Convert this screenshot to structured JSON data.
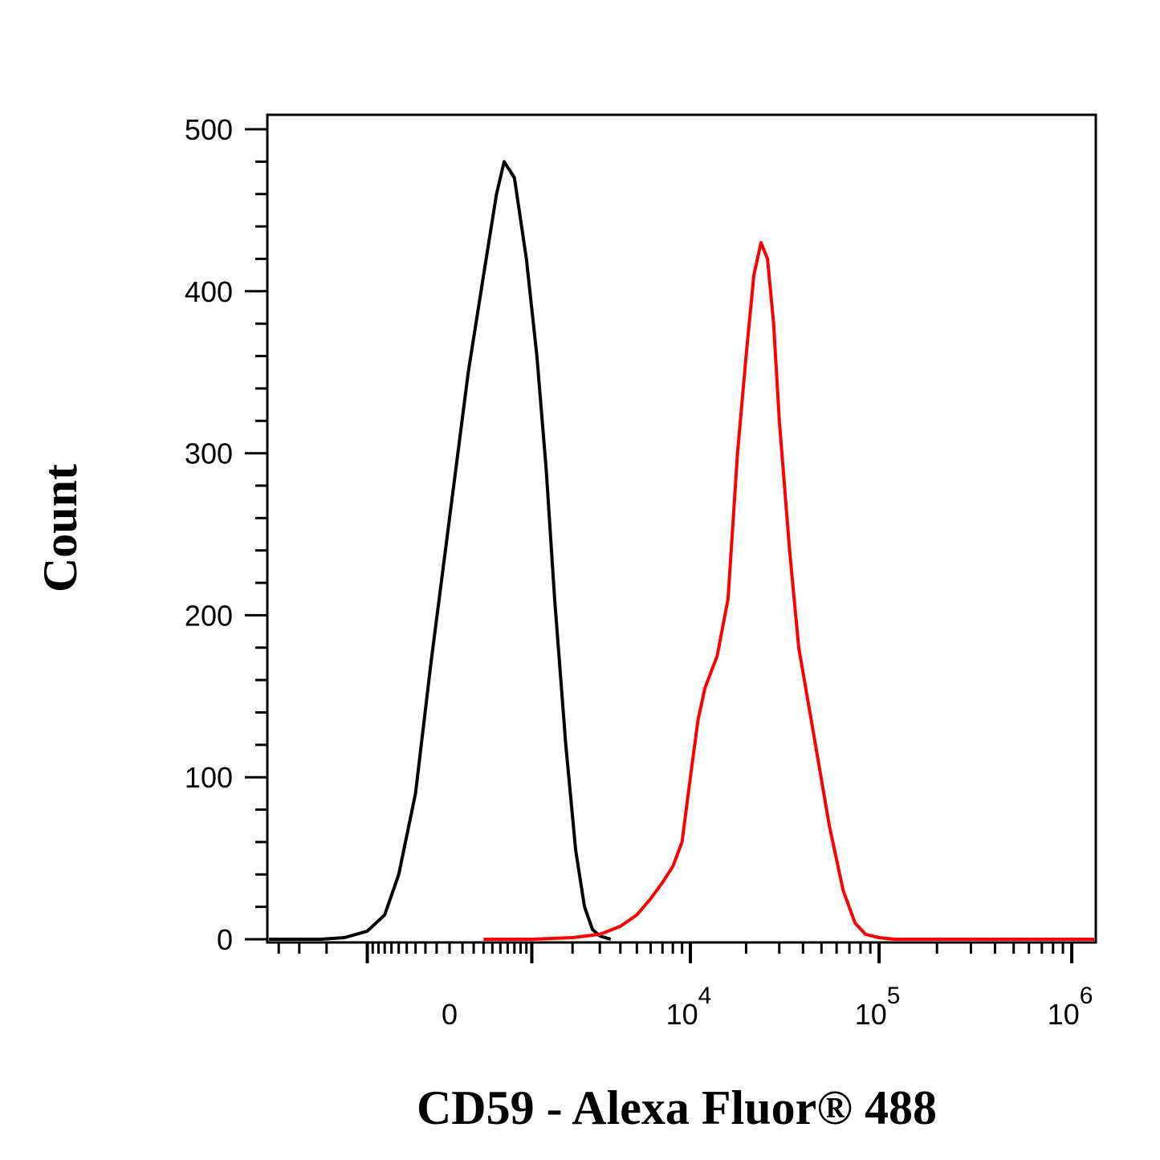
{
  "chart_data": {
    "type": "line",
    "title": "",
    "xlabel": "CD59 - Alexa Fluor® 488",
    "ylabel": "Count",
    "x_scale": "biexponential",
    "ylim": [
      0,
      500
    ],
    "y_ticks": [
      {
        "value": 0,
        "label": "0"
      },
      {
        "value": 100,
        "label": "100"
      },
      {
        "value": 200,
        "label": "200"
      },
      {
        "value": 300,
        "label": "300"
      },
      {
        "value": 400,
        "label": "400"
      },
      {
        "value": 500,
        "label": "500"
      }
    ],
    "x_ticks": [
      {
        "value": 0,
        "base": "0",
        "exp": ""
      },
      {
        "value": 10000,
        "base": "10",
        "exp": "4"
      },
      {
        "value": 100000,
        "base": "10",
        "exp": "5"
      },
      {
        "value": 1000000,
        "base": "10",
        "exp": "6"
      }
    ],
    "grid": false,
    "legend": "none",
    "series": [
      {
        "color": "#000000",
        "points": [
          [
            -2200,
            0
          ],
          [
            -1500,
            1
          ],
          [
            -1000,
            5
          ],
          [
            -700,
            15
          ],
          [
            -500,
            40
          ],
          [
            -300,
            90
          ],
          [
            -150,
            170
          ],
          [
            0,
            260
          ],
          [
            150,
            350
          ],
          [
            300,
            410
          ],
          [
            450,
            460
          ],
          [
            550,
            480
          ],
          [
            700,
            470
          ],
          [
            900,
            420
          ],
          [
            1100,
            360
          ],
          [
            1300,
            290
          ],
          [
            1500,
            210
          ],
          [
            1800,
            120
          ],
          [
            2100,
            55
          ],
          [
            2400,
            20
          ],
          [
            2700,
            6
          ],
          [
            3000,
            2
          ],
          [
            3500,
            0
          ]
        ]
      },
      {
        "color": "#ff0000",
        "points": [
          [
            300,
            0
          ],
          [
            1000,
            0
          ],
          [
            2000,
            1
          ],
          [
            3000,
            3
          ],
          [
            4000,
            8
          ],
          [
            5000,
            15
          ],
          [
            6000,
            25
          ],
          [
            7000,
            35
          ],
          [
            8000,
            45
          ],
          [
            9000,
            60
          ],
          [
            10000,
            100
          ],
          [
            11000,
            135
          ],
          [
            12000,
            155
          ],
          [
            14000,
            175
          ],
          [
            16000,
            210
          ],
          [
            18000,
            300
          ],
          [
            20000,
            360
          ],
          [
            22000,
            410
          ],
          [
            24000,
            430
          ],
          [
            26000,
            420
          ],
          [
            28000,
            380
          ],
          [
            30000,
            320
          ],
          [
            34000,
            240
          ],
          [
            38000,
            180
          ],
          [
            45000,
            130
          ],
          [
            55000,
            70
          ],
          [
            65000,
            30
          ],
          [
            75000,
            10
          ],
          [
            85000,
            3
          ],
          [
            100000,
            1
          ],
          [
            120000,
            0
          ],
          [
            1800000,
            0
          ]
        ]
      }
    ]
  }
}
